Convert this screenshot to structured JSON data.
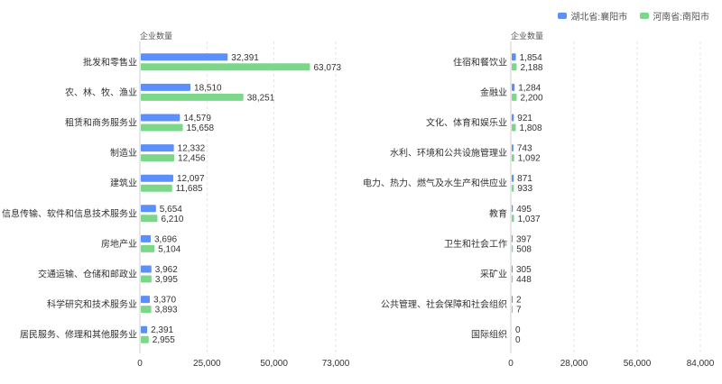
{
  "legend": {
    "items": [
      {
        "label": "湖北省:襄阳市",
        "color": "#5b8ff9"
      },
      {
        "label": "河南省:南阳市",
        "color": "#7dd78a"
      }
    ]
  },
  "chart_data": [
    {
      "type": "bar",
      "orientation": "horizontal",
      "ylabel": "企业数量",
      "categories": [
        "批发和零售业",
        "农、林、牧、渔业",
        "租赁和商务服务业",
        "制造业",
        "建筑业",
        "信息传输、软件和信息技术服务业",
        "房地产业",
        "交通运输、仓储和邮政业",
        "科学研究和技术服务业",
        "居民服务、修理和其他服务业"
      ],
      "series": [
        {
          "name": "湖北省:襄阳市",
          "values": [
            32391,
            18510,
            14579,
            12332,
            12097,
            5654,
            3696,
            3962,
            3370,
            2391
          ]
        },
        {
          "name": "河南省:南阳市",
          "values": [
            63073,
            38251,
            15658,
            12456,
            11685,
            6210,
            5104,
            3995,
            3893,
            2955
          ]
        }
      ],
      "value_labels": [
        [
          "32,391",
          "18,510",
          "14,579",
          "12,332",
          "12,097",
          "5,654",
          "3,696",
          "3,962",
          "3,370",
          "2,391"
        ],
        [
          "63,073",
          "38,251",
          "15,658",
          "12,456",
          "11,685",
          "6,210",
          "5,104",
          "3,995",
          "3,893",
          "2,955"
        ]
      ],
      "xlim": [
        0,
        73000
      ],
      "ticks": [
        0,
        25000,
        50000,
        73000
      ],
      "tick_labels": [
        "0",
        "25,000",
        "50,000",
        "73,000"
      ],
      "grid": true
    },
    {
      "type": "bar",
      "orientation": "horizontal",
      "ylabel": "企业数量",
      "categories": [
        "住宿和餐饮业",
        "金融业",
        "文化、体育和娱乐业",
        "水利、环境和公共设施管理业",
        "电力、热力、燃气及水生产和供应业",
        "教育",
        "卫生和社会工作",
        "采矿业",
        "公共管理、社会保障和社会组织",
        "国际组织"
      ],
      "series": [
        {
          "name": "湖北省:襄阳市",
          "values": [
            1854,
            1284,
            921,
            743,
            871,
            495,
            397,
            305,
            2,
            0
          ]
        },
        {
          "name": "河南省:南阳市",
          "values": [
            2188,
            2200,
            1808,
            1092,
            933,
            1037,
            508,
            448,
            7,
            0
          ]
        }
      ],
      "value_labels": [
        [
          "1,854",
          "1,284",
          "921",
          "743",
          "871",
          "495",
          "397",
          "305",
          "2",
          "0"
        ],
        [
          "2,188",
          "2,200",
          "1,808",
          "1,092",
          "933",
          "1,037",
          "508",
          "448",
          "7",
          "0"
        ]
      ],
      "xlim": [
        0,
        84000
      ],
      "ticks": [
        0,
        28000,
        56000,
        84000
      ],
      "tick_labels": [
        "0",
        "28,000",
        "56,000",
        "84,000"
      ],
      "grid": true
    }
  ]
}
